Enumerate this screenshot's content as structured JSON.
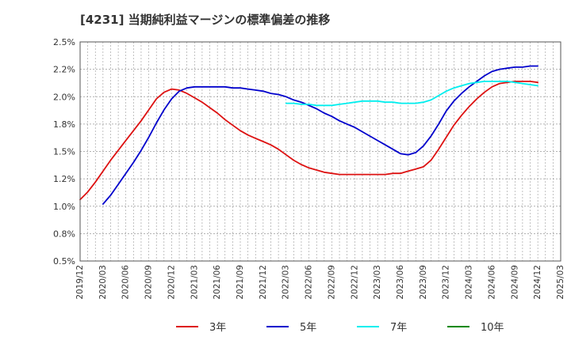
{
  "title": "[4231]  当期純利益マージンの標準偏差の推移",
  "chart_data": {
    "type": "line",
    "title": "[4231]  当期純利益マージンの標準偏差の推移",
    "xlabel": "",
    "ylabel": "",
    "ylim": [
      0.5,
      2.5
    ],
    "xlim": [
      "2019-12",
      "2025-03"
    ],
    "x_tick_labels": [
      "2019/12",
      "2020/03",
      "2020/06",
      "2020/09",
      "2020/12",
      "2021/03",
      "2021/06",
      "2021/09",
      "2021/12",
      "2022/03",
      "2022/06",
      "2022/09",
      "2022/12",
      "2023/03",
      "2023/06",
      "2023/09",
      "2023/12",
      "2024/03",
      "2024/06",
      "2024/09",
      "2024/12",
      "2025/03"
    ],
    "y_ticks": [
      0.5,
      0.75,
      1.0,
      1.25,
      1.5,
      1.75,
      2.0,
      2.25,
      2.5
    ],
    "y_tick_labels": [
      "0.5%",
      "0.8%",
      "1.0%",
      "1.2%",
      "1.5%",
      "1.8%",
      "2.0%",
      "2.2%",
      "2.5%"
    ],
    "grid": true,
    "legend_position": "bottom",
    "series": [
      {
        "name": "3年",
        "color": "#dd1111",
        "x": [
          "2019-12",
          "2020-01",
          "2020-02",
          "2020-03",
          "2020-04",
          "2020-05",
          "2020-06",
          "2020-07",
          "2020-08",
          "2020-09",
          "2020-10",
          "2020-11",
          "2020-12",
          "2021-01",
          "2021-02",
          "2021-03",
          "2021-04",
          "2021-05",
          "2021-06",
          "2021-07",
          "2021-08",
          "2021-09",
          "2021-10",
          "2021-11",
          "2021-12",
          "2022-01",
          "2022-02",
          "2022-03",
          "2022-04",
          "2022-05",
          "2022-06",
          "2022-07",
          "2022-08",
          "2022-09",
          "2022-10",
          "2022-11",
          "2022-12",
          "2023-01",
          "2023-02",
          "2023-03",
          "2023-04",
          "2023-05",
          "2023-06",
          "2023-07",
          "2023-08",
          "2023-09",
          "2023-10",
          "2023-11",
          "2023-12",
          "2024-01",
          "2024-02",
          "2024-03",
          "2024-04",
          "2024-05",
          "2024-06",
          "2024-07",
          "2024-08",
          "2024-09",
          "2024-10",
          "2024-11",
          "2024-12"
        ],
        "values": [
          1.06,
          1.13,
          1.22,
          1.32,
          1.42,
          1.51,
          1.6,
          1.69,
          1.78,
          1.88,
          1.98,
          2.04,
          2.07,
          2.06,
          2.03,
          1.99,
          1.95,
          1.9,
          1.85,
          1.79,
          1.74,
          1.69,
          1.65,
          1.62,
          1.59,
          1.56,
          1.52,
          1.47,
          1.42,
          1.38,
          1.35,
          1.33,
          1.31,
          1.3,
          1.29,
          1.29,
          1.29,
          1.29,
          1.29,
          1.29,
          1.29,
          1.3,
          1.3,
          1.32,
          1.34,
          1.36,
          1.42,
          1.52,
          1.63,
          1.74,
          1.83,
          1.91,
          1.98,
          2.04,
          2.09,
          2.12,
          2.13,
          2.14,
          2.14,
          2.14,
          2.13
        ]
      },
      {
        "name": "5年",
        "color": "#0000cc",
        "x": [
          "2020-03",
          "2020-04",
          "2020-05",
          "2020-06",
          "2020-07",
          "2020-08",
          "2020-09",
          "2020-10",
          "2020-11",
          "2020-12",
          "2021-01",
          "2021-02",
          "2021-03",
          "2021-04",
          "2021-05",
          "2021-06",
          "2021-07",
          "2021-08",
          "2021-09",
          "2021-10",
          "2021-11",
          "2021-12",
          "2022-01",
          "2022-02",
          "2022-03",
          "2022-04",
          "2022-05",
          "2022-06",
          "2022-07",
          "2022-08",
          "2022-09",
          "2022-10",
          "2022-11",
          "2022-12",
          "2023-01",
          "2023-02",
          "2023-03",
          "2023-04",
          "2023-05",
          "2023-06",
          "2023-07",
          "2023-08",
          "2023-09",
          "2023-10",
          "2023-11",
          "2023-12",
          "2024-01",
          "2024-02",
          "2024-03",
          "2024-04",
          "2024-05",
          "2024-06",
          "2024-07",
          "2024-08",
          "2024-09",
          "2024-10",
          "2024-11",
          "2024-12"
        ],
        "values": [
          1.02,
          1.1,
          1.2,
          1.3,
          1.4,
          1.51,
          1.63,
          1.76,
          1.88,
          1.98,
          2.05,
          2.08,
          2.09,
          2.09,
          2.09,
          2.09,
          2.09,
          2.08,
          2.08,
          2.07,
          2.06,
          2.05,
          2.03,
          2.02,
          2.0,
          1.97,
          1.95,
          1.92,
          1.89,
          1.85,
          1.82,
          1.78,
          1.75,
          1.72,
          1.68,
          1.64,
          1.6,
          1.56,
          1.52,
          1.48,
          1.47,
          1.49,
          1.55,
          1.64,
          1.75,
          1.87,
          1.96,
          2.03,
          2.09,
          2.14,
          2.19,
          2.23,
          2.25,
          2.26,
          2.27,
          2.27,
          2.28,
          2.28
        ]
      },
      {
        "name": "7年",
        "color": "#00eeee",
        "x": [
          "2022-03",
          "2022-04",
          "2022-05",
          "2022-06",
          "2022-07",
          "2022-08",
          "2022-09",
          "2022-10",
          "2022-11",
          "2022-12",
          "2023-01",
          "2023-02",
          "2023-03",
          "2023-04",
          "2023-05",
          "2023-06",
          "2023-07",
          "2023-08",
          "2023-09",
          "2023-10",
          "2023-11",
          "2023-12",
          "2024-01",
          "2024-02",
          "2024-03",
          "2024-04",
          "2024-05",
          "2024-06",
          "2024-07",
          "2024-08",
          "2024-09",
          "2024-10",
          "2024-11",
          "2024-12"
        ],
        "values": [
          1.94,
          1.94,
          1.93,
          1.93,
          1.92,
          1.92,
          1.92,
          1.93,
          1.94,
          1.95,
          1.96,
          1.96,
          1.96,
          1.95,
          1.95,
          1.94,
          1.94,
          1.94,
          1.95,
          1.97,
          2.01,
          2.05,
          2.08,
          2.1,
          2.12,
          2.13,
          2.14,
          2.14,
          2.14,
          2.14,
          2.13,
          2.12,
          2.11,
          2.1
        ]
      },
      {
        "name": "10年",
        "color": "#008800",
        "x": [],
        "values": []
      }
    ]
  }
}
